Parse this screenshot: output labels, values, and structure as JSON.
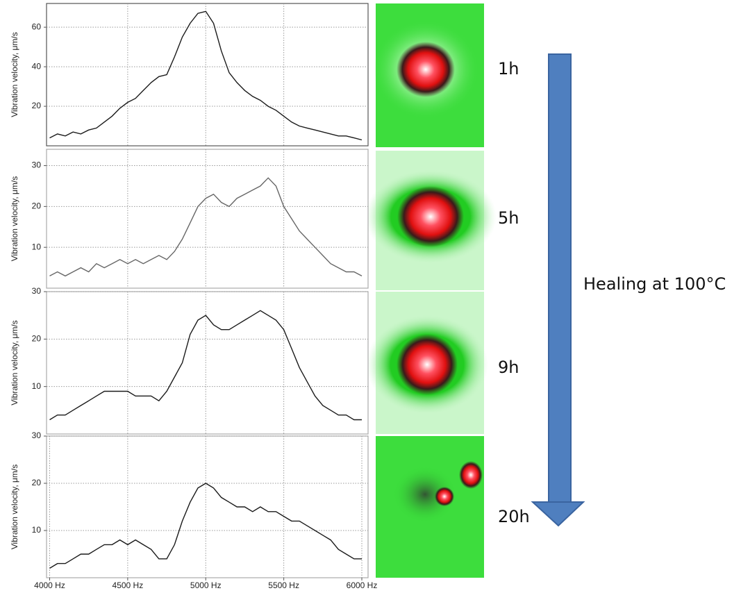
{
  "chart_data": [
    {
      "type": "line",
      "ylabel": "Vibration velocity, μm/s",
      "color": "#1a1a1a",
      "frame": "#555555",
      "x": [
        4000,
        4050,
        4100,
        4150,
        4200,
        4250,
        4300,
        4350,
        4400,
        4450,
        4500,
        4550,
        4600,
        4650,
        4700,
        4750,
        4800,
        4850,
        4900,
        4950,
        5000,
        5050,
        5100,
        5150,
        5200,
        5250,
        5300,
        5350,
        5400,
        5450,
        5500,
        5550,
        5600,
        5650,
        5700,
        5750,
        5800,
        5850,
        5900,
        5950,
        6000
      ],
      "values": [
        4,
        6,
        5,
        7,
        6,
        8,
        9,
        12,
        15,
        19,
        22,
        24,
        28,
        32,
        35,
        36,
        45,
        55,
        62,
        67,
        68,
        62,
        48,
        37,
        32,
        28,
        25,
        23,
        20,
        18,
        15,
        12,
        10,
        9,
        8,
        7,
        6,
        5,
        5,
        4,
        3
      ],
      "xlim": [
        3980,
        6040
      ],
      "ylim": [
        0,
        72
      ],
      "yticks": [
        20,
        40,
        60
      ],
      "xticks": [
        4500,
        5000,
        5500
      ],
      "xtick_labels": false,
      "grid": true
    },
    {
      "type": "line",
      "ylabel": "Vibration velocity, μm/s",
      "color": "#666666",
      "frame": "#aaaaaa",
      "x": [
        4000,
        4050,
        4100,
        4150,
        4200,
        4250,
        4300,
        4350,
        4400,
        4450,
        4500,
        4550,
        4600,
        4650,
        4700,
        4750,
        4800,
        4850,
        4900,
        4950,
        5000,
        5050,
        5100,
        5150,
        5200,
        5250,
        5300,
        5350,
        5400,
        5450,
        5500,
        5550,
        5600,
        5650,
        5700,
        5750,
        5800,
        5850,
        5900,
        5950,
        6000
      ],
      "values": [
        3,
        4,
        3,
        4,
        5,
        4,
        6,
        5,
        6,
        7,
        6,
        7,
        6,
        7,
        8,
        7,
        9,
        12,
        16,
        20,
        22,
        23,
        21,
        20,
        22,
        23,
        24,
        25,
        27,
        25,
        20,
        17,
        14,
        12,
        10,
        8,
        6,
        5,
        4,
        4,
        3
      ],
      "xlim": [
        3980,
        6040
      ],
      "ylim": [
        0,
        34
      ],
      "yticks": [
        10,
        20,
        30
      ],
      "xticks": [
        4500,
        5000,
        5500
      ],
      "xtick_labels": false,
      "grid": true
    },
    {
      "type": "line",
      "ylabel": "Vibration velocity, μm/s",
      "color": "#1a1a1a",
      "frame": "#aaaaaa",
      "x": [
        4000,
        4050,
        4100,
        4150,
        4200,
        4250,
        4300,
        4350,
        4400,
        4450,
        4500,
        4550,
        4600,
        4650,
        4700,
        4750,
        4800,
        4850,
        4900,
        4950,
        5000,
        5050,
        5100,
        5150,
        5200,
        5250,
        5300,
        5350,
        5400,
        5450,
        5500,
        5550,
        5600,
        5650,
        5700,
        5750,
        5800,
        5850,
        5900,
        5950,
        6000
      ],
      "values": [
        3,
        4,
        4,
        5,
        6,
        7,
        8,
        9,
        9,
        9,
        9,
        8,
        8,
        8,
        7,
        9,
        12,
        15,
        21,
        24,
        25,
        23,
        22,
        22,
        23,
        24,
        25,
        26,
        25,
        24,
        22,
        18,
        14,
        11,
        8,
        6,
        5,
        4,
        4,
        3,
        3
      ],
      "xlim": [
        3980,
        6040
      ],
      "ylim": [
        0,
        30
      ],
      "yticks": [
        10,
        20,
        30
      ],
      "xticks": [
        4500,
        5000,
        5500
      ],
      "xtick_labels": false,
      "grid": true
    },
    {
      "type": "line",
      "ylabel": "Vibration velocity, μm/s",
      "color": "#1a1a1a",
      "frame": "#aaaaaa",
      "x": [
        4000,
        4050,
        4100,
        4150,
        4200,
        4250,
        4300,
        4350,
        4400,
        4450,
        4500,
        4550,
        4600,
        4650,
        4700,
        4750,
        4800,
        4850,
        4900,
        4950,
        5000,
        5050,
        5100,
        5150,
        5200,
        5250,
        5300,
        5350,
        5400,
        5450,
        5500,
        5550,
        5600,
        5650,
        5700,
        5750,
        5800,
        5850,
        5900,
        5950,
        6000
      ],
      "values": [
        2,
        3,
        3,
        4,
        5,
        5,
        6,
        7,
        7,
        8,
        7,
        8,
        7,
        6,
        4,
        4,
        7,
        12,
        16,
        19,
        20,
        19,
        17,
        16,
        15,
        15,
        14,
        15,
        14,
        14,
        13,
        12,
        12,
        11,
        10,
        9,
        8,
        6,
        5,
        4,
        4
      ],
      "xlim": [
        3980,
        6040
      ],
      "ylim": [
        0,
        30
      ],
      "yticks": [
        10,
        20,
        30
      ],
      "xticks": [
        {
          "value": 4000,
          "label": "4000 Hz"
        },
        {
          "value": 4500,
          "label": "4500 Hz"
        },
        {
          "value": 5000,
          "label": "5000 Hz"
        },
        {
          "value": 5500,
          "label": "5500 Hz"
        },
        {
          "value": 6000,
          "label": "6000 Hz"
        }
      ],
      "xtick_labels": true,
      "grid": true
    }
  ],
  "annotations": {
    "times": [
      "1h",
      "5h",
      "9h",
      "20h"
    ],
    "arrow_label": "Healing at 100°C"
  }
}
